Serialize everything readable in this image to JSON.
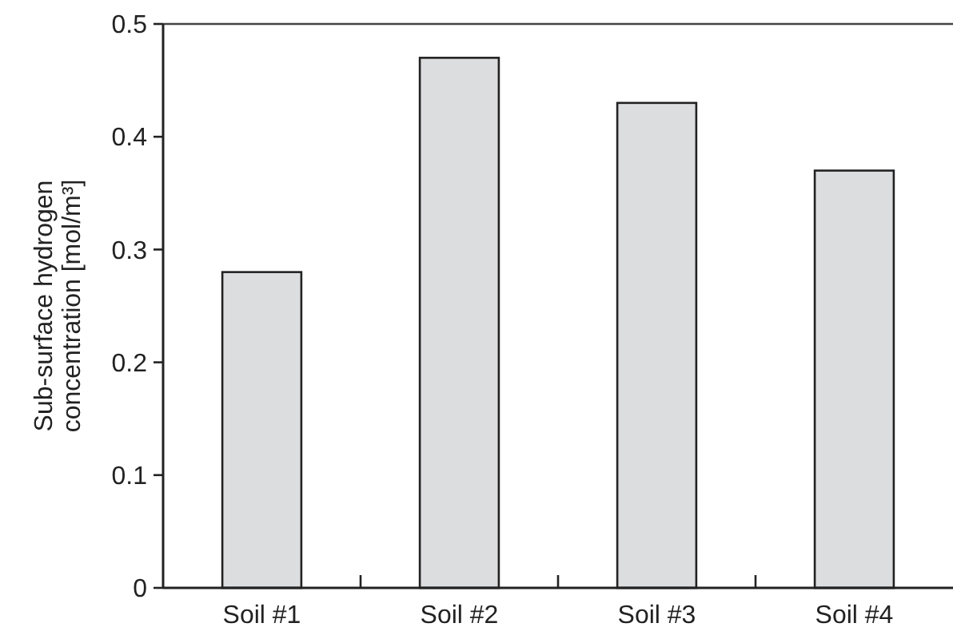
{
  "chart_data": {
    "type": "bar",
    "ylabel": "Sub-surface hydrogen concentration [mol/m³]",
    "categories": [
      "Soil #1",
      "Soil #2",
      "Soil #3",
      "Soil #4"
    ],
    "values": [
      0.28,
      0.47,
      0.43,
      0.37
    ],
    "color": "#dcdddf",
    "ylim": [
      0,
      0.5
    ],
    "yticks": [
      0,
      0.1,
      0.2,
      0.3,
      0.4,
      0.5
    ],
    "grid": false
  }
}
